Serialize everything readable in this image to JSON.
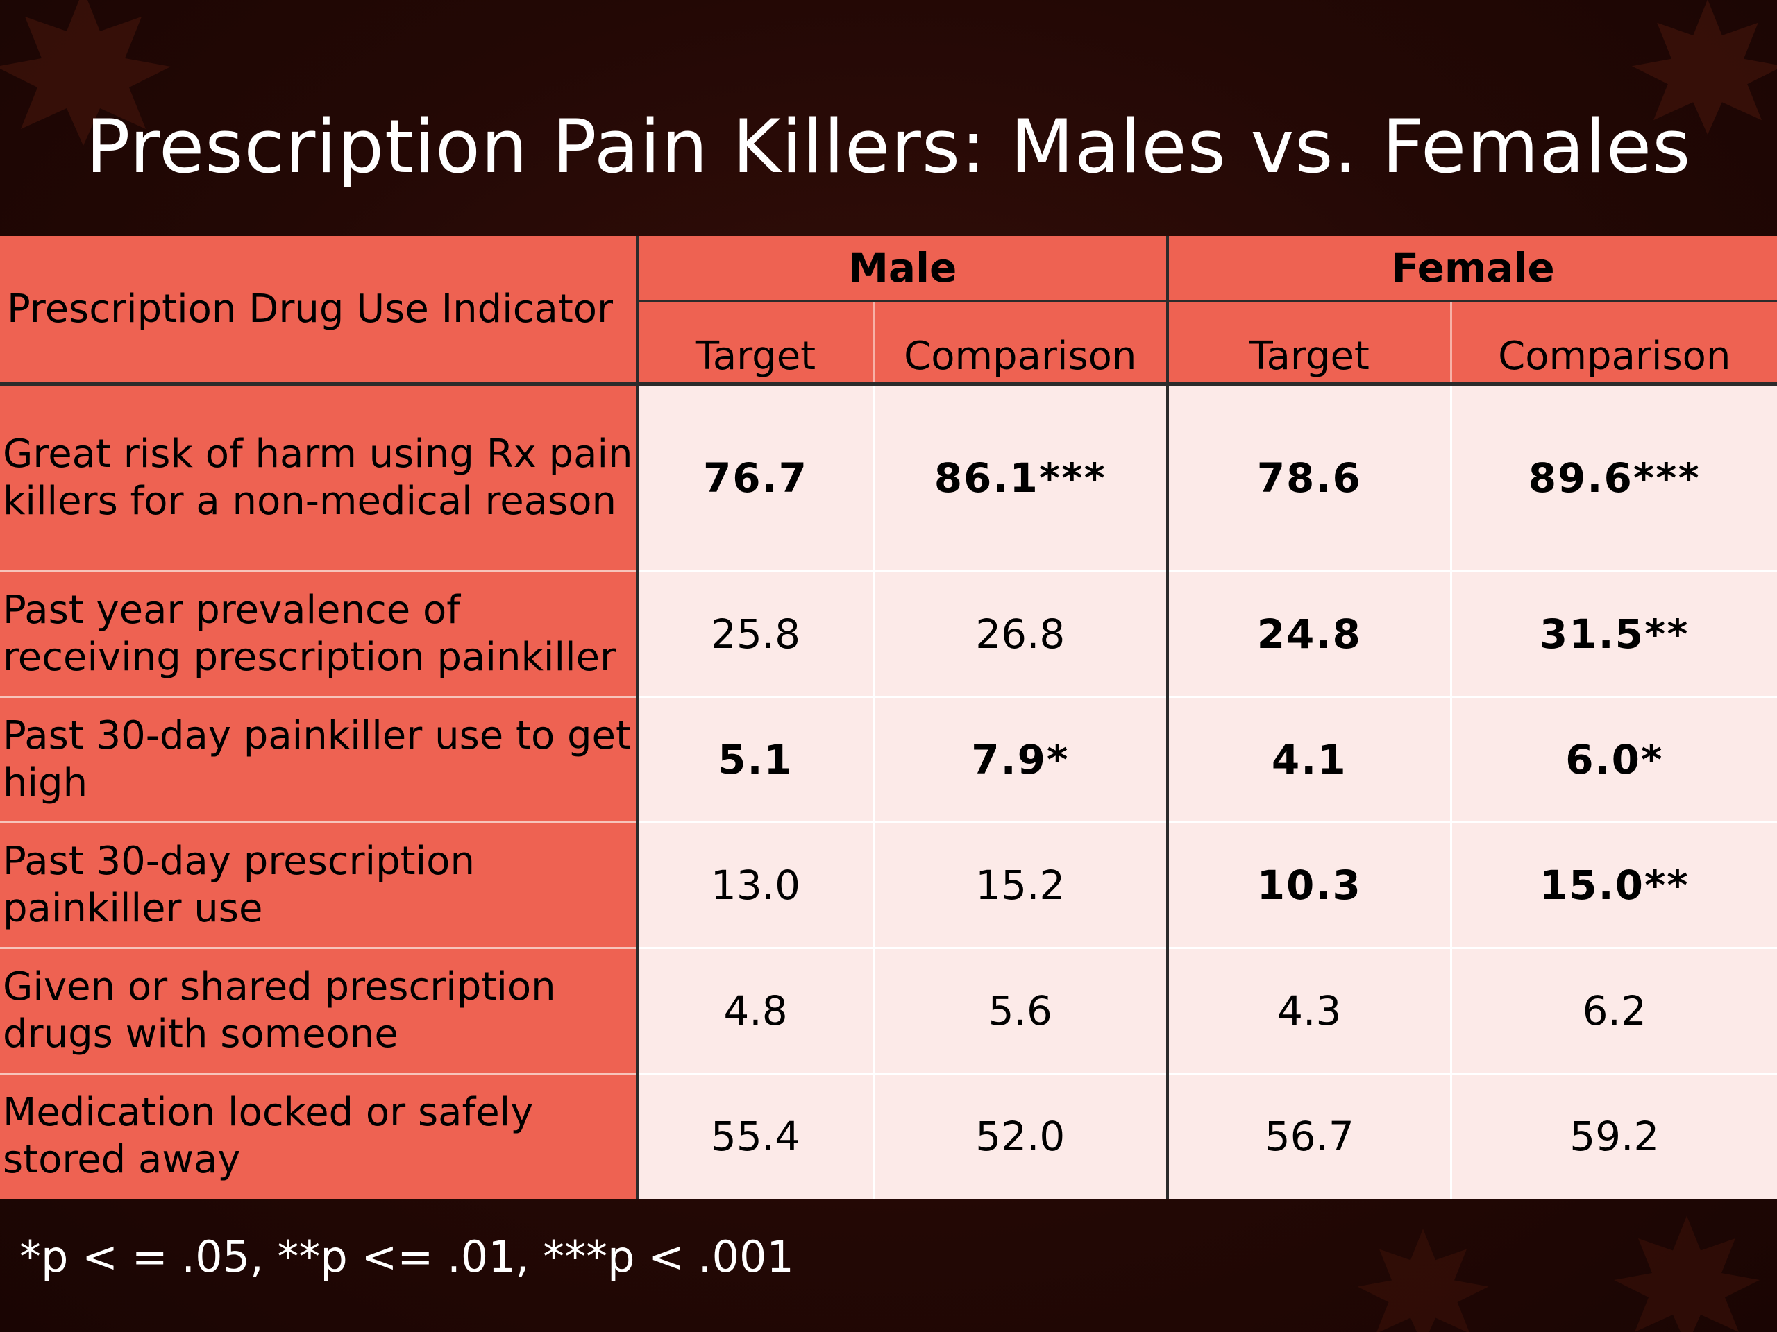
{
  "slide": {
    "title": "Prescription Pain Killers:  Males vs. Females",
    "footnote": "*p < = .05, **p <= .01, ***p < .001"
  },
  "table": {
    "indicator_header": "Prescription Drug Use Indicator",
    "groups": [
      "Male",
      "Female"
    ],
    "subheaders": [
      "Target",
      "Comparison",
      "Target",
      "Comparison"
    ],
    "rows": [
      {
        "label": "Great risk of harm using Rx pain killers for a non-medical reason",
        "values": [
          "76.7",
          "86.1***",
          "78.6",
          "89.6***"
        ],
        "bold": [
          true,
          true,
          true,
          true
        ]
      },
      {
        "label": "Past year prevalence of receiving prescription painkiller",
        "values": [
          "25.8",
          "26.8",
          "24.8",
          "31.5**"
        ],
        "bold": [
          false,
          false,
          true,
          true
        ]
      },
      {
        "label": "Past 30-day painkiller use to get high",
        "values": [
          "5.1",
          "7.9*",
          "4.1",
          "6.0*"
        ],
        "bold": [
          true,
          true,
          true,
          true
        ]
      },
      {
        "label": "Past 30-day prescription painkiller use",
        "values": [
          "13.0",
          "15.2",
          "10.3",
          "15.0**"
        ],
        "bold": [
          false,
          false,
          true,
          true
        ]
      },
      {
        "label": "Given or shared prescription drugs with someone",
        "values": [
          "4.8",
          "5.6",
          "4.3",
          "6.2"
        ],
        "bold": [
          false,
          false,
          false,
          false
        ]
      },
      {
        "label": "Medication locked or safely stored away",
        "values": [
          "55.4",
          "52.0",
          "56.7",
          "59.2"
        ],
        "bold": [
          false,
          false,
          false,
          false
        ]
      }
    ]
  },
  "colors": {
    "background": "#230805",
    "header_fill": "#ee6252",
    "cell_fill": "#fceae8",
    "title_text": "#ffffff"
  },
  "decorations": [
    "maple-leaf-icon"
  ]
}
